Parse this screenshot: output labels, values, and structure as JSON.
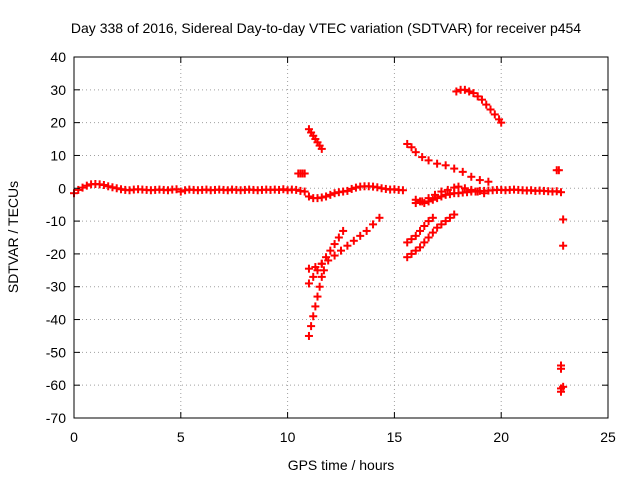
{
  "chart_data": {
    "type": "scatter",
    "title": "Day 338 of 2016, Sidereal Day-to-day VTEC variation (SDTVAR) for receiver p454",
    "xlabel": "GPS time / hours",
    "ylabel": "SDTVAR / TECUs",
    "xlim": [
      0,
      25
    ],
    "ylim": [
      -70,
      40
    ],
    "xticks": [
      0,
      5,
      10,
      15,
      20,
      25
    ],
    "yticks": [
      -70,
      -60,
      -50,
      -40,
      -30,
      -20,
      -10,
      0,
      10,
      20,
      30,
      40
    ],
    "xtick_labels": [
      "0",
      "5",
      "10",
      "15",
      "20",
      "25"
    ],
    "ytick_labels": [
      "-70",
      "-60",
      "-50",
      "-40",
      "-30",
      "-20",
      "-10",
      "0",
      "10",
      "20",
      "30",
      "40"
    ],
    "grid": true,
    "marker": "+",
    "color": "#ff0000",
    "series": [
      {
        "points": [
          [
            0.0,
            -1.5
          ],
          [
            0.2,
            -0.5
          ],
          [
            0.4,
            0.2
          ],
          [
            0.6,
            0.8
          ],
          [
            0.8,
            1.2
          ],
          [
            1.0,
            1.3
          ],
          [
            1.2,
            1.2
          ],
          [
            1.4,
            1.0
          ],
          [
            1.6,
            0.6
          ],
          [
            1.8,
            0.3
          ],
          [
            2.0,
            0.0
          ],
          [
            2.2,
            -0.3
          ],
          [
            2.4,
            -0.5
          ],
          [
            2.6,
            -0.6
          ],
          [
            2.8,
            -0.4
          ],
          [
            3.0,
            -0.3
          ],
          [
            3.2,
            -0.4
          ],
          [
            3.4,
            -0.5
          ],
          [
            3.6,
            -0.6
          ],
          [
            3.8,
            -0.5
          ],
          [
            4.0,
            -0.4
          ],
          [
            4.2,
            -0.5
          ],
          [
            4.4,
            -0.6
          ],
          [
            4.6,
            -0.4
          ],
          [
            4.8,
            -0.3
          ],
          [
            5.0,
            -1.0
          ],
          [
            5.2,
            -0.6
          ],
          [
            5.4,
            -0.4
          ],
          [
            5.6,
            -0.5
          ],
          [
            5.8,
            -0.6
          ],
          [
            6.0,
            -0.5
          ],
          [
            6.2,
            -0.4
          ],
          [
            6.4,
            -0.6
          ],
          [
            6.6,
            -0.5
          ],
          [
            6.8,
            -0.4
          ],
          [
            7.0,
            -0.5
          ],
          [
            7.2,
            -0.6
          ],
          [
            7.4,
            -0.4
          ],
          [
            7.6,
            -0.5
          ],
          [
            7.8,
            -0.6
          ],
          [
            8.0,
            -0.5
          ],
          [
            8.2,
            -0.4
          ],
          [
            8.4,
            -0.5
          ],
          [
            8.6,
            -0.6
          ],
          [
            8.8,
            -0.5
          ],
          [
            9.0,
            -0.4
          ],
          [
            9.2,
            -0.5
          ],
          [
            9.4,
            -0.4
          ],
          [
            9.6,
            -0.5
          ],
          [
            9.8,
            -0.3
          ],
          [
            10.0,
            -0.6
          ],
          [
            10.2,
            -0.4
          ],
          [
            10.4,
            -0.5
          ],
          [
            10.6,
            -0.8
          ],
          [
            10.8,
            -1.0
          ],
          [
            11.0,
            -2.5
          ],
          [
            11.2,
            -3.0
          ],
          [
            11.4,
            -3.0
          ],
          [
            11.6,
            -2.8
          ],
          [
            11.8,
            -2.5
          ],
          [
            12.0,
            -2.0
          ],
          [
            12.2,
            -1.5
          ],
          [
            12.4,
            -1.2
          ],
          [
            12.6,
            -1.0
          ],
          [
            12.8,
            -0.8
          ],
          [
            13.0,
            -0.2
          ],
          [
            13.2,
            0.2
          ],
          [
            13.4,
            0.5
          ],
          [
            13.6,
            0.6
          ],
          [
            13.8,
            0.6
          ],
          [
            14.0,
            0.5
          ],
          [
            14.2,
            0.3
          ],
          [
            14.4,
            0.0
          ],
          [
            14.6,
            -0.2
          ],
          [
            14.8,
            -0.4
          ],
          [
            15.0,
            -0.3
          ],
          [
            15.2,
            -0.5
          ],
          [
            15.4,
            -0.6
          ],
          [
            16.0,
            -3.5
          ],
          [
            16.2,
            -4.0
          ],
          [
            16.4,
            -4.5
          ],
          [
            16.6,
            -4.0
          ],
          [
            16.8,
            -3.5
          ],
          [
            17.0,
            -3.0
          ],
          [
            17.2,
            -2.5
          ],
          [
            17.4,
            -2.0
          ],
          [
            17.6,
            -1.8
          ],
          [
            17.8,
            -1.5
          ],
          [
            18.0,
            -1.5
          ],
          [
            18.2,
            -1.3
          ],
          [
            18.4,
            -1.2
          ],
          [
            18.6,
            -1.0
          ],
          [
            18.8,
            -1.0
          ],
          [
            19.0,
            -0.8
          ],
          [
            19.2,
            -0.8
          ],
          [
            19.4,
            -0.7
          ],
          [
            19.6,
            -0.6
          ],
          [
            19.8,
            -0.5
          ],
          [
            20.0,
            -0.5
          ],
          [
            20.2,
            -0.6
          ],
          [
            20.4,
            -0.5
          ],
          [
            20.6,
            -0.4
          ],
          [
            20.8,
            -0.5
          ],
          [
            21.0,
            -0.6
          ],
          [
            21.2,
            -0.7
          ],
          [
            21.4,
            -0.6
          ],
          [
            21.6,
            -0.8
          ],
          [
            21.8,
            -0.7
          ],
          [
            22.0,
            -0.8
          ],
          [
            22.2,
            -0.9
          ],
          [
            22.4,
            -1.0
          ],
          [
            22.6,
            -0.9
          ],
          [
            22.8,
            -1.2
          ],
          [
            10.5,
            4.5
          ],
          [
            10.6,
            4.5
          ],
          [
            10.7,
            4.5
          ],
          [
            10.8,
            4.5
          ],
          [
            11.0,
            18.0
          ],
          [
            11.1,
            17.0
          ],
          [
            11.2,
            16.0
          ],
          [
            11.3,
            15.0
          ],
          [
            11.4,
            14.0
          ],
          [
            11.5,
            13.0
          ],
          [
            11.6,
            12.0
          ],
          [
            11.0,
            -45.0
          ],
          [
            11.1,
            -42.0
          ],
          [
            11.2,
            -39.0
          ],
          [
            11.3,
            -36.0
          ],
          [
            11.4,
            -33.0
          ],
          [
            11.5,
            -30.0
          ],
          [
            11.6,
            -27.0
          ],
          [
            11.7,
            -25.0
          ],
          [
            11.0,
            -29.0
          ],
          [
            11.2,
            -27.0
          ],
          [
            11.4,
            -25.0
          ],
          [
            11.6,
            -23.0
          ],
          [
            11.8,
            -21.0
          ],
          [
            12.0,
            -19.0
          ],
          [
            12.2,
            -17.0
          ],
          [
            12.4,
            -15.0
          ],
          [
            12.6,
            -13.0
          ],
          [
            11.0,
            -24.5
          ],
          [
            11.3,
            -24.0
          ],
          [
            11.6,
            -23.0
          ],
          [
            11.9,
            -22.0
          ],
          [
            12.2,
            -20.5
          ],
          [
            12.5,
            -19.0
          ],
          [
            12.8,
            -17.5
          ],
          [
            13.1,
            -16.0
          ],
          [
            13.4,
            -14.5
          ],
          [
            13.7,
            -13.0
          ],
          [
            14.0,
            -11.0
          ],
          [
            14.3,
            -9.0
          ],
          [
            15.6,
            -21.0
          ],
          [
            15.8,
            -20.0
          ],
          [
            16.0,
            -19.0
          ],
          [
            16.2,
            -18.0
          ],
          [
            16.4,
            -16.5
          ],
          [
            16.6,
            -15.0
          ],
          [
            16.8,
            -13.5
          ],
          [
            17.0,
            -12.0
          ],
          [
            17.2,
            -11.0
          ],
          [
            17.4,
            -10.0
          ],
          [
            17.6,
            -9.0
          ],
          [
            17.8,
            -8.0
          ],
          [
            15.6,
            -16.5
          ],
          [
            15.8,
            -15.5
          ],
          [
            16.0,
            -14.5
          ],
          [
            16.2,
            -13.0
          ],
          [
            16.4,
            -11.5
          ],
          [
            16.6,
            -10.0
          ],
          [
            16.8,
            -9.0
          ],
          [
            16.0,
            -4.5
          ],
          [
            16.3,
            -4.0
          ],
          [
            16.6,
            -3.0
          ],
          [
            16.9,
            -2.0
          ],
          [
            17.2,
            -1.0
          ],
          [
            17.5,
            -0.5
          ],
          [
            17.8,
            0.2
          ],
          [
            18.0,
            0.5
          ],
          [
            18.3,
            0.0
          ],
          [
            18.6,
            -0.5
          ],
          [
            18.9,
            -1.0
          ],
          [
            19.2,
            -1.5
          ],
          [
            15.6,
            13.5
          ],
          [
            15.8,
            12.5
          ],
          [
            16.0,
            11.0
          ],
          [
            16.3,
            9.5
          ],
          [
            16.6,
            8.5
          ],
          [
            17.0,
            7.5
          ],
          [
            17.4,
            7.0
          ],
          [
            17.8,
            6.0
          ],
          [
            18.2,
            5.0
          ],
          [
            18.6,
            3.5
          ],
          [
            19.0,
            2.5
          ],
          [
            19.4,
            2.0
          ],
          [
            17.9,
            29.5
          ],
          [
            18.1,
            30.0
          ],
          [
            18.3,
            30.0
          ],
          [
            18.5,
            29.5
          ],
          [
            18.7,
            29.0
          ],
          [
            18.9,
            28.0
          ],
          [
            19.1,
            27.0
          ],
          [
            19.3,
            25.5
          ],
          [
            19.5,
            24.0
          ],
          [
            19.7,
            22.5
          ],
          [
            19.9,
            21.0
          ],
          [
            20.0,
            20.0
          ],
          [
            22.6,
            5.5
          ],
          [
            22.7,
            5.5
          ],
          [
            22.9,
            -9.5
          ],
          [
            22.9,
            -17.5
          ],
          [
            22.8,
            -54.0
          ],
          [
            22.8,
            -55.0
          ],
          [
            22.8,
            -61.0
          ],
          [
            22.8,
            -62.0
          ],
          [
            22.9,
            -60.5
          ]
        ]
      }
    ]
  }
}
